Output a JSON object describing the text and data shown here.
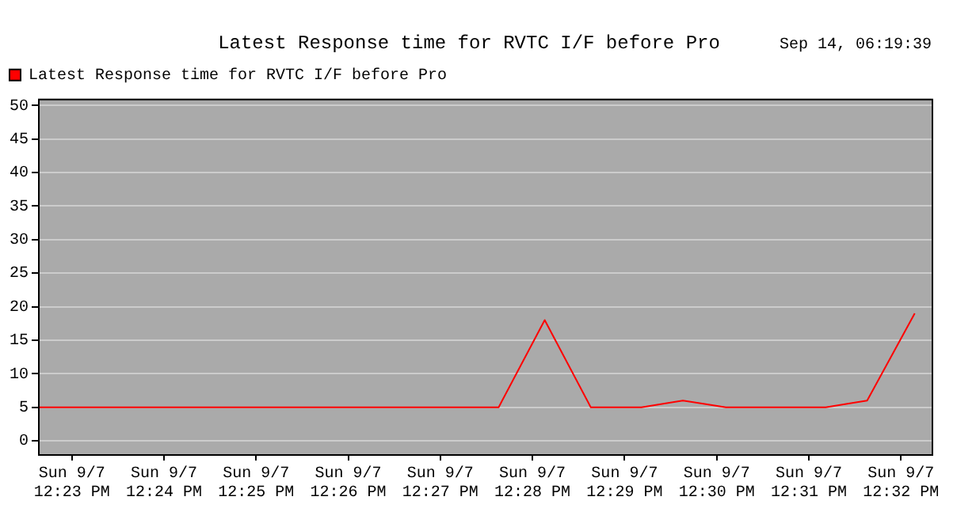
{
  "chart_data": {
    "type": "line",
    "title": "Latest Response time for RVTC I/F before Pro",
    "annotations": [
      "Sep 14, 06:19:39"
    ],
    "x": [
      "--09-07T12:22:38",
      "--09-07T12:27:38",
      "--09-07T12:28:08",
      "--09-07T12:28:38",
      "--09-07T12:29:11",
      "--09-07T12:29:38",
      "--09-07T12:30:06",
      "--09-07T12:31:11",
      "--09-07T12:31:38",
      "--09-07T12:32:09"
    ],
    "series": [
      {
        "name": "Latest Response time for RVTC I/F before Pro",
        "color": "#ff0000",
        "values": [
          5,
          5,
          18,
          5,
          5,
          6,
          5,
          5,
          6,
          19
        ]
      }
    ],
    "xlim": [
      "--09-07T12:22:38",
      "--09-07T12:32:20"
    ],
    "xticks": [
      {
        "value": "--09-07T12:23",
        "label": "Sun 9/7\n12:23 PM"
      },
      {
        "value": "--09-07T12:24",
        "label": "Sun 9/7\n12:24 PM"
      },
      {
        "value": "--09-07T12:25",
        "label": "Sun 9/7\n12:25 PM"
      },
      {
        "value": "--09-07T12:26",
        "label": "Sun 9/7\n12:26 PM"
      },
      {
        "value": "--09-07T12:27",
        "label": "Sun 9/7\n12:27 PM"
      },
      {
        "value": "--09-07T12:28",
        "label": "Sun 9/7\n12:28 PM"
      },
      {
        "value": "--09-07T12:29",
        "label": "Sun 9/7\n12:29 PM"
      },
      {
        "value": "--09-07T12:30",
        "label": "Sun 9/7\n12:30 PM"
      },
      {
        "value": "--09-07T12:31",
        "label": "Sun 9/7\n12:31 PM"
      },
      {
        "value": "--09-07T12:32",
        "label": "Sun 9/7\n12:32 PM"
      }
    ],
    "ylim": [
      -2,
      51
    ],
    "yticks": [
      0,
      5,
      10,
      15,
      20,
      25,
      30,
      35,
      40,
      45,
      50
    ],
    "grid": "y",
    "legend": "top left",
    "marker": "none",
    "line_style": "solid"
  }
}
